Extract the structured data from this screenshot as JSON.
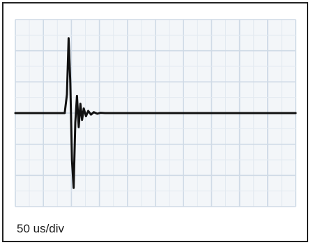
{
  "chart_data": {
    "type": "line",
    "title": "",
    "xlabel": "",
    "ylabel": "",
    "timebase_label": "50 us/div",
    "divisions": {
      "x": 10,
      "y": 6
    },
    "x_unit_per_div": 50,
    "xlim": [
      0,
      500
    ],
    "ylim": [
      -3,
      3
    ],
    "grid": true,
    "series": [
      {
        "x": [
          0,
          88,
          92,
          95,
          98,
          101,
          104,
          107,
          110,
          113,
          116,
          119,
          122,
          126,
          130,
          135,
          140,
          146,
          152,
          160,
          180,
          250,
          320,
          400,
          500
        ],
        "values": [
          0,
          0,
          0.6,
          2.4,
          1.0,
          -1.5,
          -2.4,
          -0.3,
          0.55,
          -0.45,
          0.3,
          -0.22,
          0.15,
          -0.1,
          0.07,
          -0.05,
          0.03,
          -0.02,
          0.01,
          0,
          0,
          0,
          0,
          0,
          0
        ]
      }
    ]
  },
  "colors": {
    "trace": "#111111",
    "grid": "#cfdae6",
    "background": "#f3f6f9",
    "frame": "#222222"
  }
}
